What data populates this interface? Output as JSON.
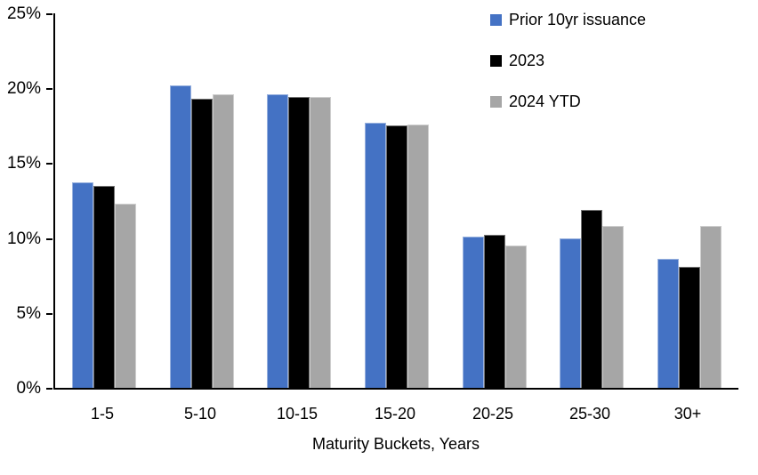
{
  "chart_data": {
    "type": "bar",
    "title": "",
    "xlabel": "Maturity Buckets, Years",
    "ylabel": "",
    "ylim": [
      0,
      25
    ],
    "yticks": [
      0,
      5,
      10,
      15,
      20,
      25
    ],
    "ytick_labels": [
      "0%",
      "5%",
      "10%",
      "15%",
      "20%",
      "25%"
    ],
    "grid": false,
    "legend_position": "top-right",
    "categories": [
      "1-5",
      "5-10",
      "10-15",
      "15-20",
      "20-25",
      "25-30",
      "30+"
    ],
    "series": [
      {
        "name": "Prior 10yr issuance",
        "color": "#4472C4",
        "values": [
          13.7,
          20.2,
          19.6,
          17.7,
          10.1,
          10.0,
          8.6
        ]
      },
      {
        "name": "2023",
        "color": "#000000",
        "values": [
          13.5,
          19.3,
          19.4,
          17.5,
          10.2,
          11.9,
          8.1
        ]
      },
      {
        "name": "2024 YTD",
        "color": "#A6A6A6",
        "values": [
          12.3,
          19.6,
          19.4,
          17.6,
          9.5,
          10.8,
          10.8
        ]
      }
    ],
    "colors": {
      "axis": "#000000",
      "background": "#ffffff"
    }
  }
}
